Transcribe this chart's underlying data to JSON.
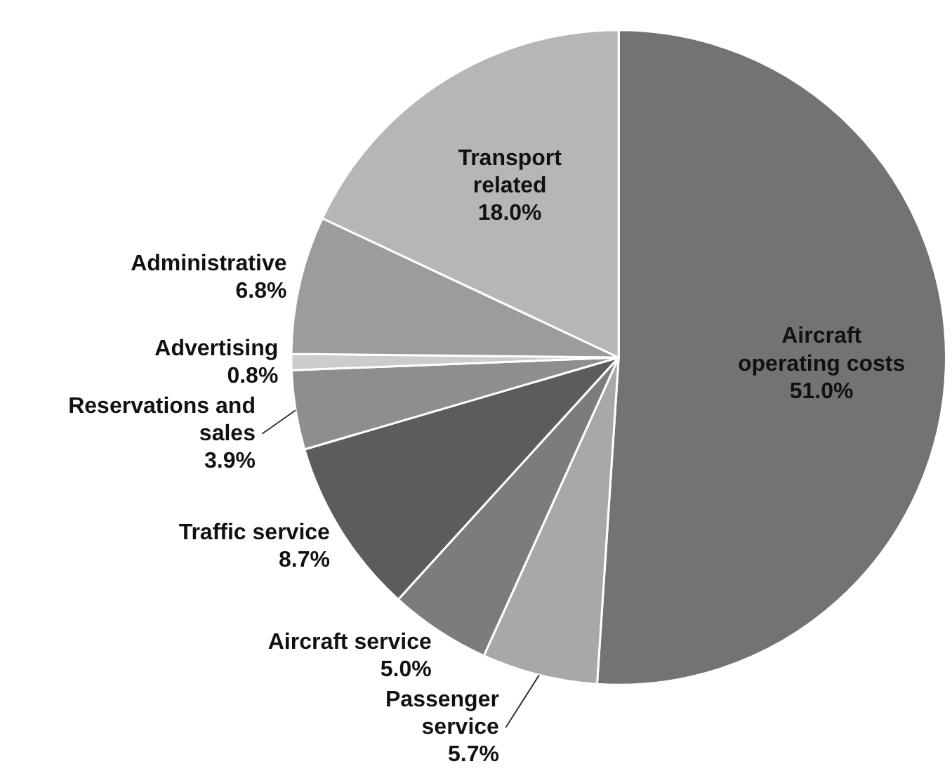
{
  "chart_data": {
    "type": "pie",
    "categories": [
      "Aircraft operating costs",
      "Passenger service",
      "Aircraft service",
      "Traffic service",
      "Reservations and sales",
      "Advertising",
      "Administrative",
      "Transport related"
    ],
    "values": [
      51.0,
      5.7,
      5.0,
      8.7,
      3.9,
      0.8,
      6.8,
      18.0
    ],
    "value_labels": [
      "51.0%",
      "5.7%",
      "5.0%",
      "8.7%",
      "3.9%",
      "0.8%",
      "6.8%",
      "18.0%"
    ],
    "colors": [
      "#737373",
      "#a8a8a8",
      "#7c7c7c",
      "#5c5c5c",
      "#8e8e8e",
      "#cccccc",
      "#9c9c9c",
      "#b6b6b6"
    ]
  }
}
